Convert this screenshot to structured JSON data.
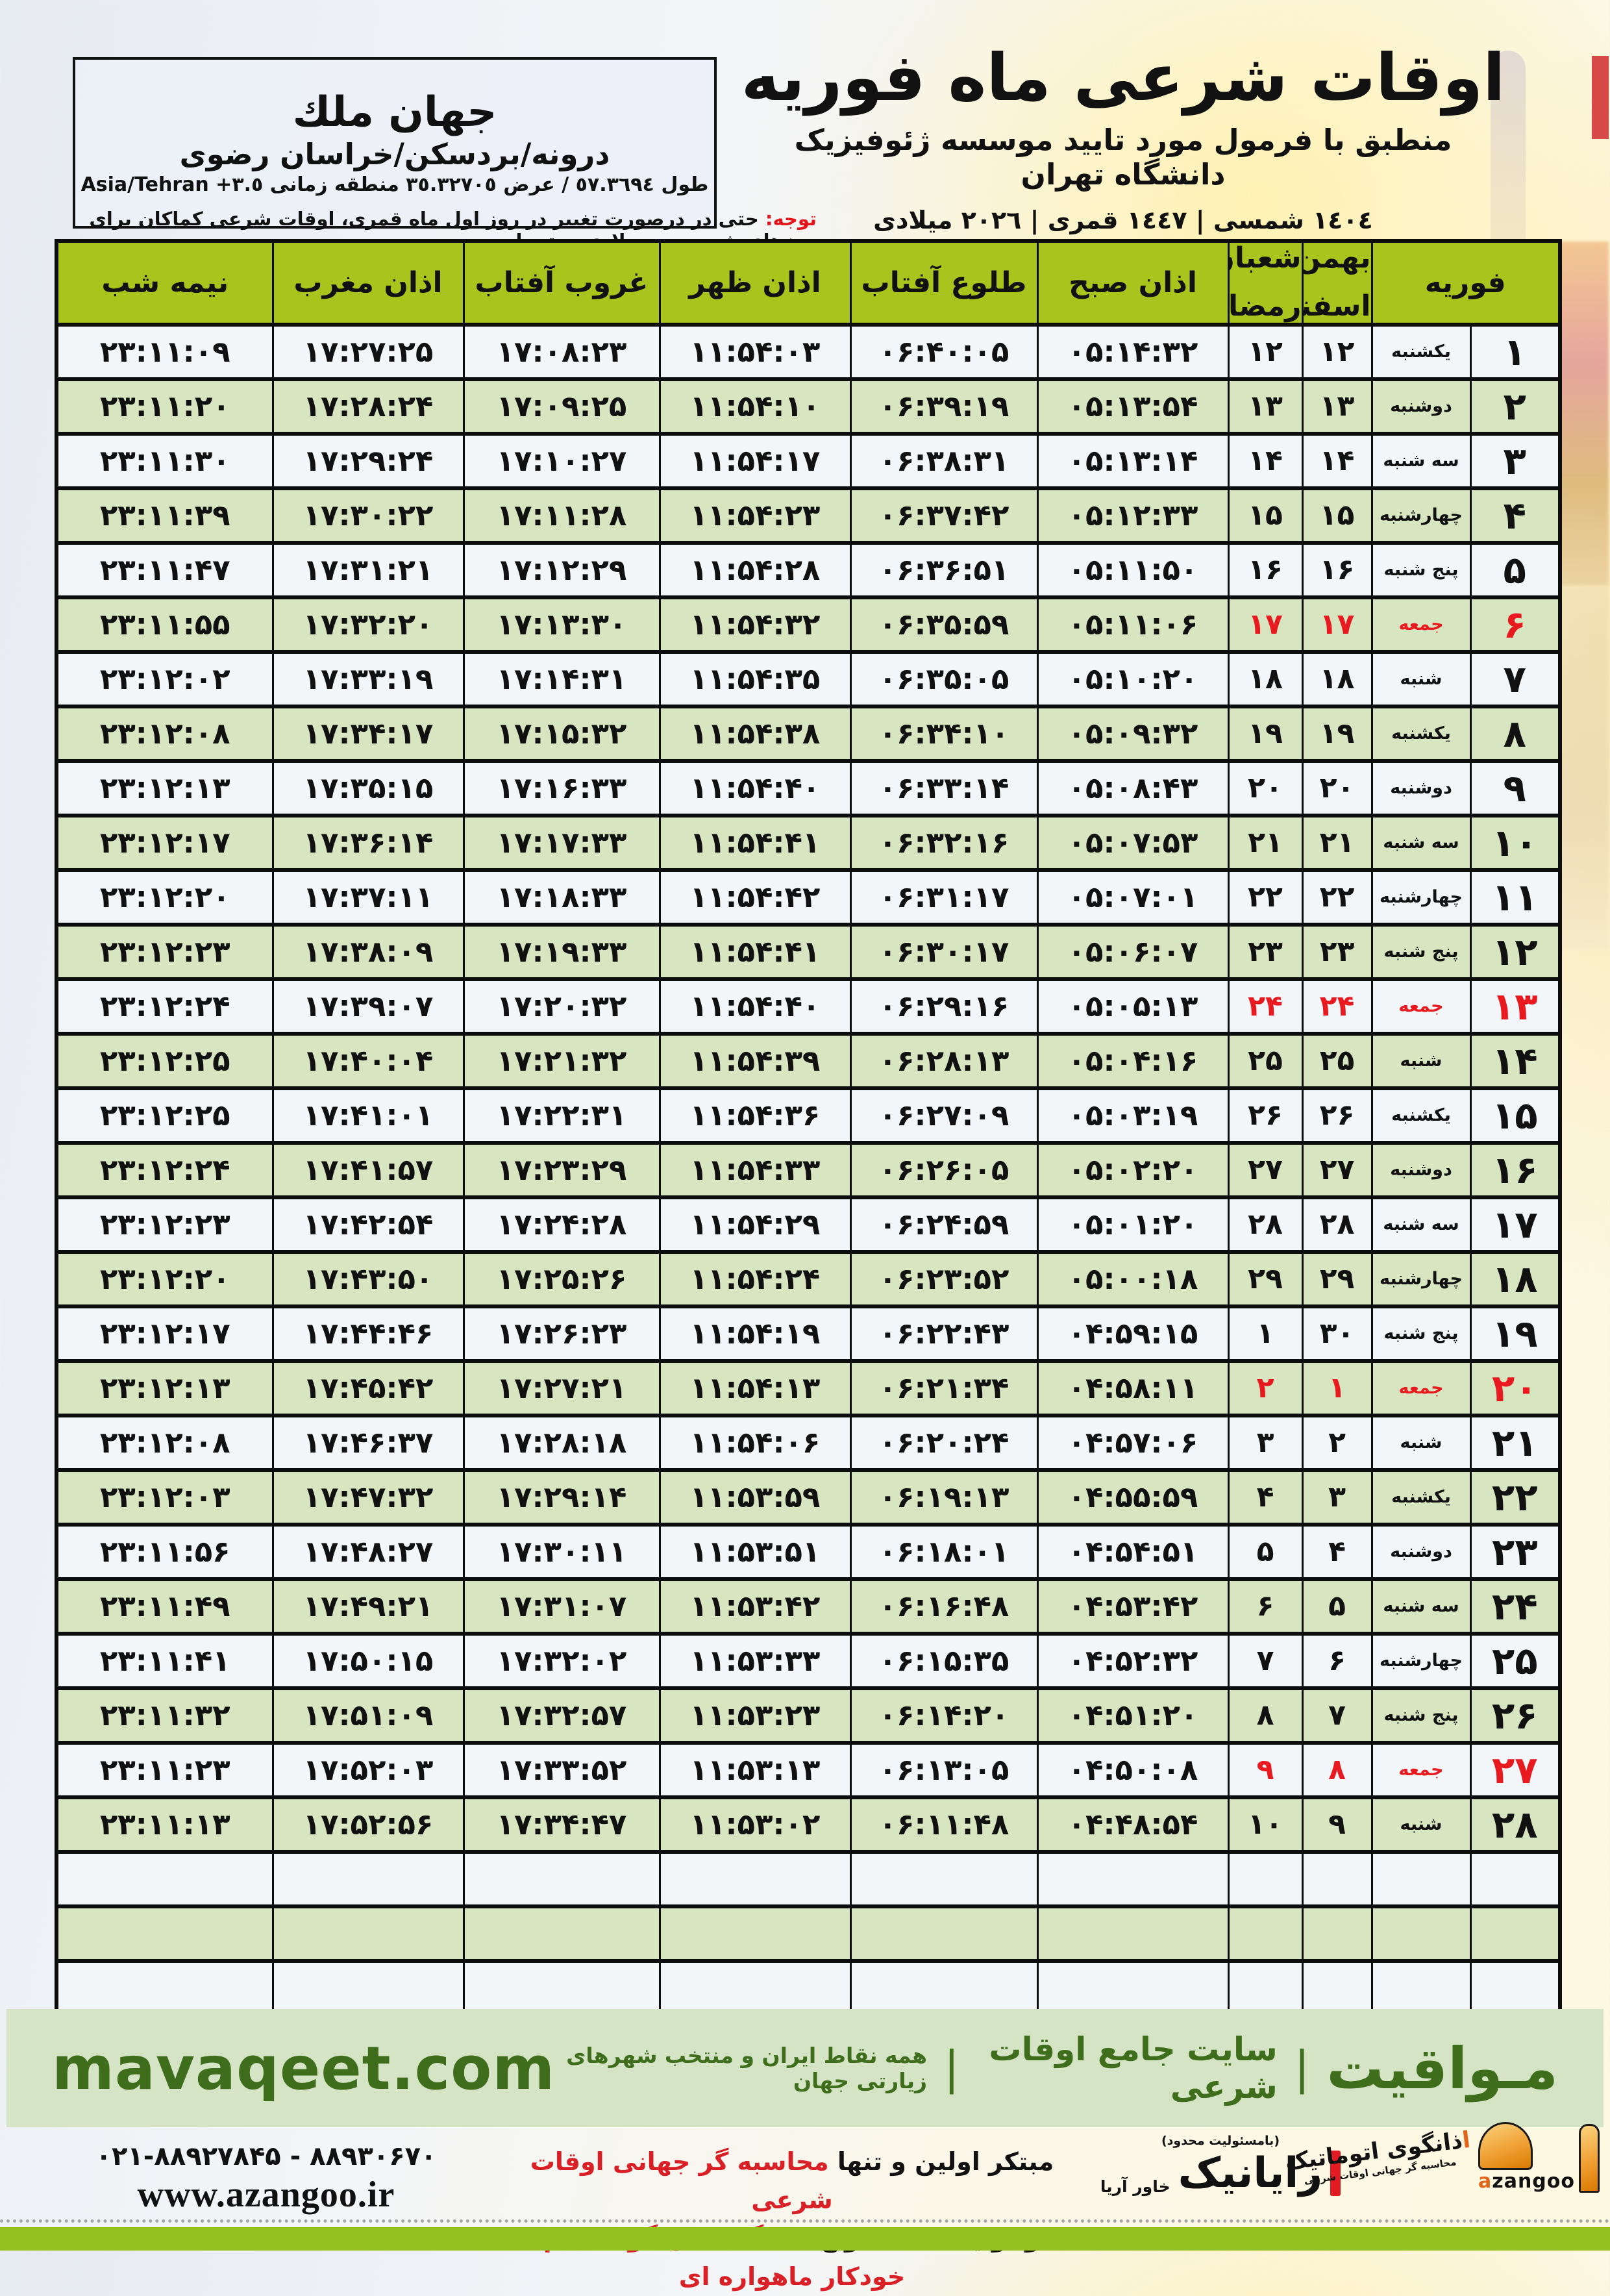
{
  "location": {
    "name": "جهان ملك",
    "region": "درونه/بردسکن/خراسان رضوی",
    "coords_fa": "طول ٥٧.٣٦٩٤ / عرض ٣٥.٣٢٧٠٥ منطقه زمانی ",
    "coords_tz": "Asia/Tehran +٣.٥"
  },
  "title": {
    "main": "اوقات شرعی ماه فوریه",
    "subtitle": "منطبق با فرمول مورد تایید موسسه ژئوفیزیک دانشگاه تهران",
    "years": "١٤٠٤ شمسی | ١٤٤٧ قمری | ٢٠٢٦ میلادی"
  },
  "note": {
    "label": "توجه:",
    "text": " حتی در درصورت تغییر در روز اول ماه قمری، اوقات شرعی کماکان برای روزهای شمسی و میلادی معتبر است."
  },
  "table": {
    "headers": {
      "feb": "فوریه",
      "jal_top": "بهمن",
      "jal_bot": "اسفند",
      "hij_top": "شعبان",
      "hij_bot": "رمضان",
      "sobh": "اذان صبح",
      "tolu": "طلوع آفتاب",
      "zohr": "اذان ظهر",
      "ghorub": "غروب آفتاب",
      "maghreb": "اذان مغرب",
      "nime": "نیمه شب"
    },
    "empty_rows": 3,
    "rows": [
      {
        "feb": "۱",
        "weekday": "یکشنبه",
        "jalali": "۱۲",
        "hijri": "۱۲",
        "sobh": "۰۵:۱۴:۳۲",
        "tolu": "۰۶:۴۰:۰۵",
        "zohr": "۱۱:۵۴:۰۳",
        "ghorub": "۱۷:۰۸:۲۳",
        "maghreb": "۱۷:۲۷:۲۵",
        "nime": "۲۳:۱۱:۰۹",
        "friday": false
      },
      {
        "feb": "۲",
        "weekday": "دوشنبه",
        "jalali": "۱۳",
        "hijri": "۱۳",
        "sobh": "۰۵:۱۳:۵۴",
        "tolu": "۰۶:۳۹:۱۹",
        "zohr": "۱۱:۵۴:۱۰",
        "ghorub": "۱۷:۰۹:۲۵",
        "maghreb": "۱۷:۲۸:۲۴",
        "nime": "۲۳:۱۱:۲۰",
        "friday": false
      },
      {
        "feb": "۳",
        "weekday": "سه شنبه",
        "jalali": "۱۴",
        "hijri": "۱۴",
        "sobh": "۰۵:۱۳:۱۴",
        "tolu": "۰۶:۳۸:۳۱",
        "zohr": "۱۱:۵۴:۱۷",
        "ghorub": "۱۷:۱۰:۲۷",
        "maghreb": "۱۷:۲۹:۲۴",
        "nime": "۲۳:۱۱:۳۰",
        "friday": false
      },
      {
        "feb": "۴",
        "weekday": "چهارشنبه",
        "jalali": "۱۵",
        "hijri": "۱۵",
        "sobh": "۰۵:۱۲:۳۳",
        "tolu": "۰۶:۳۷:۴۲",
        "zohr": "۱۱:۵۴:۲۳",
        "ghorub": "۱۷:۱۱:۲۸",
        "maghreb": "۱۷:۳۰:۲۲",
        "nime": "۲۳:۱۱:۳۹",
        "friday": false
      },
      {
        "feb": "۵",
        "weekday": "پنج شنبه",
        "jalali": "۱۶",
        "hijri": "۱۶",
        "sobh": "۰۵:۱۱:۵۰",
        "tolu": "۰۶:۳۶:۵۱",
        "zohr": "۱۱:۵۴:۲۸",
        "ghorub": "۱۷:۱۲:۲۹",
        "maghreb": "۱۷:۳۱:۲۱",
        "nime": "۲۳:۱۱:۴۷",
        "friday": false
      },
      {
        "feb": "۶",
        "weekday": "جمعه",
        "jalali": "۱۷",
        "hijri": "۱۷",
        "sobh": "۰۵:۱۱:۰۶",
        "tolu": "۰۶:۳۵:۵۹",
        "zohr": "۱۱:۵۴:۳۲",
        "ghorub": "۱۷:۱۳:۳۰",
        "maghreb": "۱۷:۳۲:۲۰",
        "nime": "۲۳:۱۱:۵۵",
        "friday": true
      },
      {
        "feb": "۷",
        "weekday": "شنبه",
        "jalali": "۱۸",
        "hijri": "۱۸",
        "sobh": "۰۵:۱۰:۲۰",
        "tolu": "۰۶:۳۵:۰۵",
        "zohr": "۱۱:۵۴:۳۵",
        "ghorub": "۱۷:۱۴:۳۱",
        "maghreb": "۱۷:۳۳:۱۹",
        "nime": "۲۳:۱۲:۰۲",
        "friday": false
      },
      {
        "feb": "۸",
        "weekday": "یکشنبه",
        "jalali": "۱۹",
        "hijri": "۱۹",
        "sobh": "۰۵:۰۹:۳۲",
        "tolu": "۰۶:۳۴:۱۰",
        "zohr": "۱۱:۵۴:۳۸",
        "ghorub": "۱۷:۱۵:۳۲",
        "maghreb": "۱۷:۳۴:۱۷",
        "nime": "۲۳:۱۲:۰۸",
        "friday": false
      },
      {
        "feb": "۹",
        "weekday": "دوشنبه",
        "jalali": "۲۰",
        "hijri": "۲۰",
        "sobh": "۰۵:۰۸:۴۳",
        "tolu": "۰۶:۳۳:۱۴",
        "zohr": "۱۱:۵۴:۴۰",
        "ghorub": "۱۷:۱۶:۳۳",
        "maghreb": "۱۷:۳۵:۱۵",
        "nime": "۲۳:۱۲:۱۳",
        "friday": false
      },
      {
        "feb": "۱۰",
        "weekday": "سه شنبه",
        "jalali": "۲۱",
        "hijri": "۲۱",
        "sobh": "۰۵:۰۷:۵۳",
        "tolu": "۰۶:۳۲:۱۶",
        "zohr": "۱۱:۵۴:۴۱",
        "ghorub": "۱۷:۱۷:۳۳",
        "maghreb": "۱۷:۳۶:۱۴",
        "nime": "۲۳:۱۲:۱۷",
        "friday": false
      },
      {
        "feb": "۱۱",
        "weekday": "چهارشنبه",
        "jalali": "۲۲",
        "hijri": "۲۲",
        "sobh": "۰۵:۰۷:۰۱",
        "tolu": "۰۶:۳۱:۱۷",
        "zohr": "۱۱:۵۴:۴۲",
        "ghorub": "۱۷:۱۸:۳۳",
        "maghreb": "۱۷:۳۷:۱۱",
        "nime": "۲۳:۱۲:۲۰",
        "friday": false
      },
      {
        "feb": "۱۲",
        "weekday": "پنج شنبه",
        "jalali": "۲۳",
        "hijri": "۲۳",
        "sobh": "۰۵:۰۶:۰۷",
        "tolu": "۰۶:۳۰:۱۷",
        "zohr": "۱۱:۵۴:۴۱",
        "ghorub": "۱۷:۱۹:۳۳",
        "maghreb": "۱۷:۳۸:۰۹",
        "nime": "۲۳:۱۲:۲۳",
        "friday": false
      },
      {
        "feb": "۱۳",
        "weekday": "جمعه",
        "jalali": "۲۴",
        "hijri": "۲۴",
        "sobh": "۰۵:۰۵:۱۳",
        "tolu": "۰۶:۲۹:۱۶",
        "zohr": "۱۱:۵۴:۴۰",
        "ghorub": "۱۷:۲۰:۳۲",
        "maghreb": "۱۷:۳۹:۰۷",
        "nime": "۲۳:۱۲:۲۴",
        "friday": true
      },
      {
        "feb": "۱۴",
        "weekday": "شنبه",
        "jalali": "۲۵",
        "hijri": "۲۵",
        "sobh": "۰۵:۰۴:۱۶",
        "tolu": "۰۶:۲۸:۱۳",
        "zohr": "۱۱:۵۴:۳۹",
        "ghorub": "۱۷:۲۱:۳۲",
        "maghreb": "۱۷:۴۰:۰۴",
        "nime": "۲۳:۱۲:۲۵",
        "friday": false
      },
      {
        "feb": "۱۵",
        "weekday": "یکشنبه",
        "jalali": "۲۶",
        "hijri": "۲۶",
        "sobh": "۰۵:۰۳:۱۹",
        "tolu": "۰۶:۲۷:۰۹",
        "zohr": "۱۱:۵۴:۳۶",
        "ghorub": "۱۷:۲۲:۳۱",
        "maghreb": "۱۷:۴۱:۰۱",
        "nime": "۲۳:۱۲:۲۵",
        "friday": false
      },
      {
        "feb": "۱۶",
        "weekday": "دوشنبه",
        "jalali": "۲۷",
        "hijri": "۲۷",
        "sobh": "۰۵:۰۲:۲۰",
        "tolu": "۰۶:۲۶:۰۵",
        "zohr": "۱۱:۵۴:۳۳",
        "ghorub": "۱۷:۲۳:۲۹",
        "maghreb": "۱۷:۴۱:۵۷",
        "nime": "۲۳:۱۲:۲۴",
        "friday": false
      },
      {
        "feb": "۱۷",
        "weekday": "سه شنبه",
        "jalali": "۲۸",
        "hijri": "۲۸",
        "sobh": "۰۵:۰۱:۲۰",
        "tolu": "۰۶:۲۴:۵۹",
        "zohr": "۱۱:۵۴:۲۹",
        "ghorub": "۱۷:۲۴:۲۸",
        "maghreb": "۱۷:۴۲:۵۴",
        "nime": "۲۳:۱۲:۲۳",
        "friday": false
      },
      {
        "feb": "۱۸",
        "weekday": "چهارشنبه",
        "jalali": "۲۹",
        "hijri": "۲۹",
        "sobh": "۰۵:۰۰:۱۸",
        "tolu": "۰۶:۲۳:۵۲",
        "zohr": "۱۱:۵۴:۲۴",
        "ghorub": "۱۷:۲۵:۲۶",
        "maghreb": "۱۷:۴۳:۵۰",
        "nime": "۲۳:۱۲:۲۰",
        "friday": false
      },
      {
        "feb": "۱۹",
        "weekday": "پنج شنبه",
        "jalali": "۳۰",
        "hijri": "۱",
        "sobh": "۰۴:۵۹:۱۵",
        "tolu": "۰۶:۲۲:۴۳",
        "zohr": "۱۱:۵۴:۱۹",
        "ghorub": "۱۷:۲۶:۲۳",
        "maghreb": "۱۷:۴۴:۴۶",
        "nime": "۲۳:۱۲:۱۷",
        "friday": false
      },
      {
        "feb": "۲۰",
        "weekday": "جمعه",
        "jalali": "۱",
        "hijri": "۲",
        "sobh": "۰۴:۵۸:۱۱",
        "tolu": "۰۶:۲۱:۳۴",
        "zohr": "۱۱:۵۴:۱۳",
        "ghorub": "۱۷:۲۷:۲۱",
        "maghreb": "۱۷:۴۵:۴۲",
        "nime": "۲۳:۱۲:۱۳",
        "friday": true
      },
      {
        "feb": "۲۱",
        "weekday": "شنبه",
        "jalali": "۲",
        "hijri": "۳",
        "sobh": "۰۴:۵۷:۰۶",
        "tolu": "۰۶:۲۰:۲۴",
        "zohr": "۱۱:۵۴:۰۶",
        "ghorub": "۱۷:۲۸:۱۸",
        "maghreb": "۱۷:۴۶:۳۷",
        "nime": "۲۳:۱۲:۰۸",
        "friday": false
      },
      {
        "feb": "۲۲",
        "weekday": "یکشنبه",
        "jalali": "۳",
        "hijri": "۴",
        "sobh": "۰۴:۵۵:۵۹",
        "tolu": "۰۶:۱۹:۱۳",
        "zohr": "۱۱:۵۳:۵۹",
        "ghorub": "۱۷:۲۹:۱۴",
        "maghreb": "۱۷:۴۷:۳۲",
        "nime": "۲۳:۱۲:۰۳",
        "friday": false
      },
      {
        "feb": "۲۳",
        "weekday": "دوشنبه",
        "jalali": "۴",
        "hijri": "۵",
        "sobh": "۰۴:۵۴:۵۱",
        "tolu": "۰۶:۱۸:۰۱",
        "zohr": "۱۱:۵۳:۵۱",
        "ghorub": "۱۷:۳۰:۱۱",
        "maghreb": "۱۷:۴۸:۲۷",
        "nime": "۲۳:۱۱:۵۶",
        "friday": false
      },
      {
        "feb": "۲۴",
        "weekday": "سه شنبه",
        "jalali": "۵",
        "hijri": "۶",
        "sobh": "۰۴:۵۳:۴۲",
        "tolu": "۰۶:۱۶:۴۸",
        "zohr": "۱۱:۵۳:۴۲",
        "ghorub": "۱۷:۳۱:۰۷",
        "maghreb": "۱۷:۴۹:۲۱",
        "nime": "۲۳:۱۱:۴۹",
        "friday": false
      },
      {
        "feb": "۲۵",
        "weekday": "چهارشنبه",
        "jalali": "۶",
        "hijri": "۷",
        "sobh": "۰۴:۵۲:۳۲",
        "tolu": "۰۶:۱۵:۳۵",
        "zohr": "۱۱:۵۳:۳۳",
        "ghorub": "۱۷:۳۲:۰۲",
        "maghreb": "۱۷:۵۰:۱۵",
        "nime": "۲۳:۱۱:۴۱",
        "friday": false
      },
      {
        "feb": "۲۶",
        "weekday": "پنج شنبه",
        "jalali": "۷",
        "hijri": "۸",
        "sobh": "۰۴:۵۱:۲۰",
        "tolu": "۰۶:۱۴:۲۰",
        "zohr": "۱۱:۵۳:۲۳",
        "ghorub": "۱۷:۳۲:۵۷",
        "maghreb": "۱۷:۵۱:۰۹",
        "nime": "۲۳:۱۱:۳۲",
        "friday": false
      },
      {
        "feb": "۲۷",
        "weekday": "جمعه",
        "jalali": "۸",
        "hijri": "۹",
        "sobh": "۰۴:۵۰:۰۸",
        "tolu": "۰۶:۱۳:۰۵",
        "zohr": "۱۱:۵۳:۱۳",
        "ghorub": "۱۷:۳۳:۵۲",
        "maghreb": "۱۷:۵۲:۰۳",
        "nime": "۲۳:۱۱:۲۳",
        "friday": true
      },
      {
        "feb": "۲۸",
        "weekday": "شنبه",
        "jalali": "۹",
        "hijri": "۱۰",
        "sobh": "۰۴:۴۸:۵۴",
        "tolu": "۰۶:۱۱:۴۸",
        "zohr": "۱۱:۵۳:۰۲",
        "ghorub": "۱۷:۳۴:۴۷",
        "maghreb": "۱۷:۵۲:۵۶",
        "nime": "۲۳:۱۱:۱۳",
        "friday": false
      }
    ]
  },
  "band": {
    "brand": "مـواقیت",
    "sep": "|",
    "tagline1": "سایت جامع اوقات شرعی",
    "tagline2": "همه نقاط ایران و منتخب شهرهای زیارتی جهان",
    "url": "mavaqeet.com"
  },
  "footer": {
    "phone": "۰۲۱-۸۸۹۲۷۸۴۵ - ۸۸۹۳۰۶۷۰",
    "website": "www.azangoo.ir",
    "claim1_black": "مبتکر اولین و تنها ",
    "claim1_red": "محاسبه گر جهانی اوقات شرعی",
    "claim2_black": "و تولید کننده انواع ",
    "claim2_red": "دستگاه اذان گوی تمام خودکار ماهواره ای",
    "rayanik_note": "(بامسئولیت محدود)",
    "rayanik_name": "رایانیک",
    "rayanik_sub": "خاور آریا",
    "azangoo_fa_first": "ا",
    "azangoo_fa_rest": "ذانگوی اتوماتیک",
    "azangoo_en_first": "a",
    "azangoo_en_rest": "zangoo",
    "azangoo_sub": "محاسبه گر جهانی اوقات شرعی"
  },
  "colors": {
    "header_green": "#a9c41d",
    "row_green": "#d8e5c1",
    "friday_red": "#e8191f",
    "band_green_bg": "#d6e4c6",
    "band_text": "#3e6d1c",
    "bottom_bar": "#94c11f",
    "azangoo_orange": "#f0a136"
  }
}
